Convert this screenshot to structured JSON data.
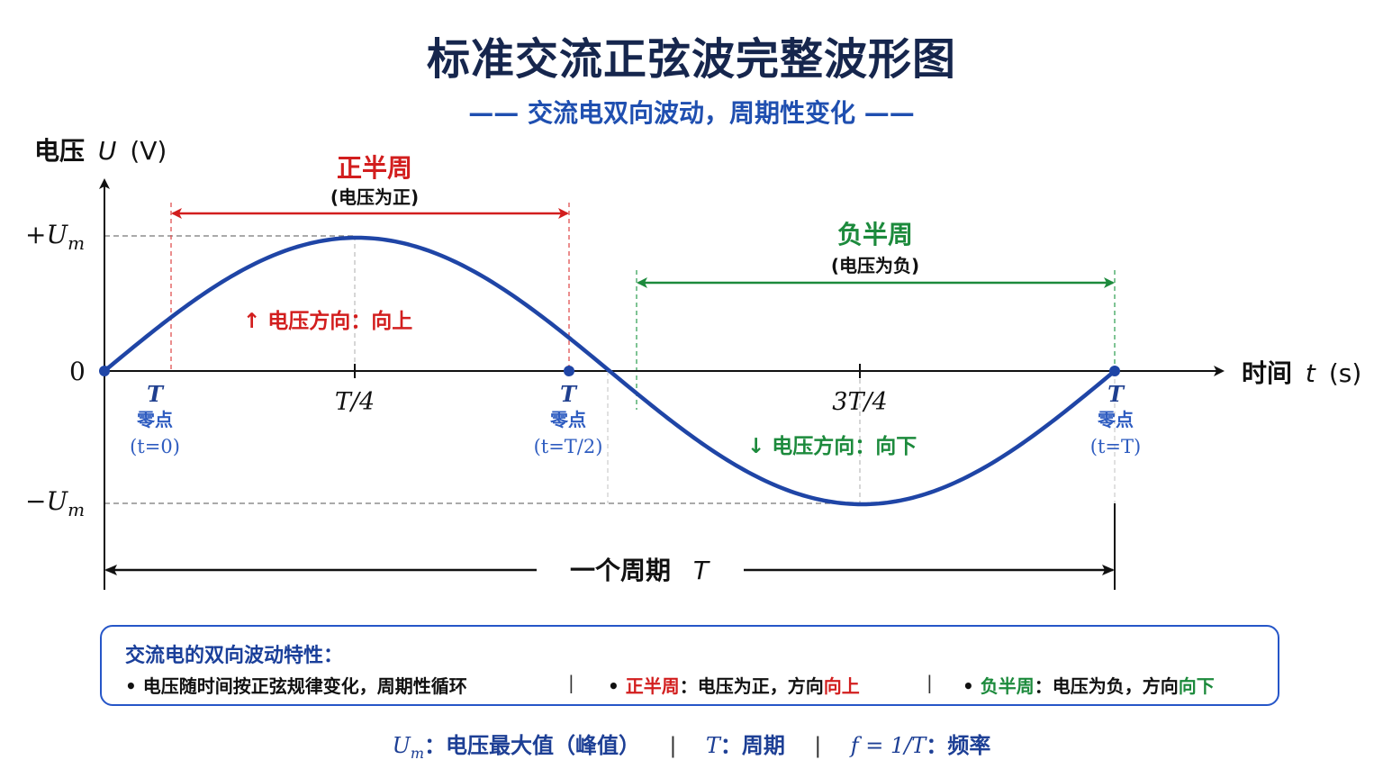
{
  "title": "标准交流正弦波完整波形图",
  "subtitle": "—— 交流电双向波动，周期性变化 ——",
  "axes": {
    "y_label_prefix": "电压",
    "y_label_symbol": "U",
    "y_label_unit": "(V)",
    "x_label_prefix": "时间",
    "x_label_symbol": "t",
    "x_label_unit": "(s)",
    "y_ticks": {
      "plus_um": "+U",
      "minus_um": "−U",
      "sub": "m",
      "zero": "0"
    },
    "x_ticks": {
      "quarter": "T/4",
      "three_quarter": "3T/4"
    }
  },
  "zero_points": [
    {
      "symbol": "T",
      "label": "零点",
      "time": "(t=0)"
    },
    {
      "symbol": "T",
      "label": "零点",
      "time": "(t=T/2)"
    },
    {
      "symbol": "T",
      "label": "零点",
      "time": "(t=T)"
    }
  ],
  "positive_half": {
    "title": "正半周",
    "note": "(电压为正)",
    "direction": "↑ 电压方向：向上",
    "color": "#d21e1e"
  },
  "negative_half": {
    "title": "负半周",
    "note": "(电压为负)",
    "direction": "↓ 电压方向：向下",
    "color": "#1c8a3c"
  },
  "period": {
    "label": "一个周期",
    "symbol": "T"
  },
  "wave_color": "#1f45a6",
  "chart_data": {
    "type": "line",
    "x": [
      "0",
      "T/4",
      "T/2",
      "3T/4",
      "T"
    ],
    "series": [
      {
        "values": [
          0,
          1,
          0,
          -1,
          0
        ]
      }
    ],
    "xlabel": "时间 t (s)",
    "ylabel": "电压 U (V)"
  },
  "info_box": {
    "title": "交流电的双向波动特性：",
    "item1": "• 电压随时间按正弦规律变化，周期性循环",
    "sep": "|",
    "item2_bullet": "•",
    "item2_label": "正半周",
    "item2_mid": "：电压为正，方向",
    "item2_dir": "向上",
    "item3_bullet": "•",
    "item3_label": "负半周",
    "item3_mid": "：电压为负，方向",
    "item3_dir": "向下"
  },
  "footer": {
    "um_symbol": "U",
    "um_sub": "m",
    "um_desc": "：电压最大值（峰值）",
    "sep": "|",
    "t_symbol": "T",
    "t_desc": "：周期",
    "f_formula": "f = 1/T",
    "f_desc": "：频率"
  }
}
